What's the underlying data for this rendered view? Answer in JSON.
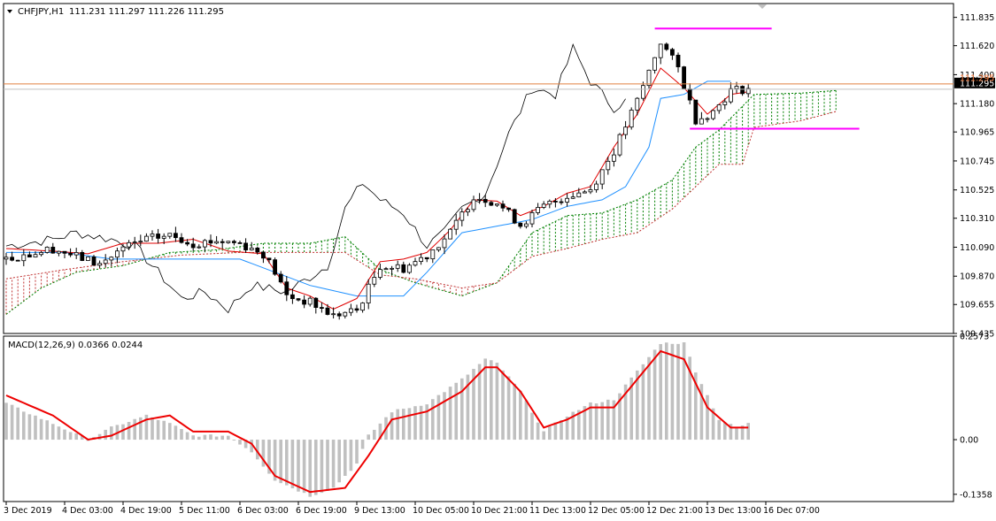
{
  "header": {
    "symbol_label": "CHFJPY,H1",
    "ohlc_label": "111.231 111.297 111.226 111.295",
    "macd_label": "MACD(12,26,9) 0.0366 0.0244"
  },
  "colors": {
    "background": "#ffffff",
    "candle": "#000000",
    "tenkan": "#e00000",
    "kijun": "#1e90ff",
    "chikou": "#000000",
    "cloud_bull": "#008000",
    "cloud_bear": "#c03030",
    "resistance_line": "#ff00ff",
    "bid_line": "#e08040",
    "macd_hist": "#c0c0c0",
    "macd_signal": "#ee0000",
    "price_badge_bg": "#000000"
  },
  "chart_data": [
    {
      "type": "candlestick",
      "title": "CHFJPY,H1",
      "ylim": [
        109.435,
        111.94
      ],
      "y_ticks": [
        "111.835",
        "111.620",
        "111.400",
        "111.180",
        "110.965",
        "110.745",
        "110.525",
        "110.310",
        "110.090",
        "109.870",
        "109.655",
        "109.435"
      ],
      "current_price": "111.295",
      "current_price_overlap": "111.295",
      "bid_line": 111.33,
      "horizontal_lines": [
        {
          "name": "upper level",
          "y": 111.75,
          "x_start": 111,
          "x_end": 131
        },
        {
          "name": "lower level",
          "y": 110.99,
          "x_start": 117,
          "x_end": 146
        }
      ],
      "close_anchors": [
        [
          0,
          110.0
        ],
        [
          8,
          110.08
        ],
        [
          12,
          110.02
        ],
        [
          16,
          109.96
        ],
        [
          20,
          110.08
        ],
        [
          24,
          110.15
        ],
        [
          28,
          110.18
        ],
        [
          32,
          110.12
        ],
        [
          36,
          110.14
        ],
        [
          40,
          110.12
        ],
        [
          44,
          110.04
        ],
        [
          46,
          109.9
        ],
        [
          48,
          109.72
        ],
        [
          52,
          109.67
        ],
        [
          56,
          109.57
        ],
        [
          60,
          109.61
        ],
        [
          64,
          109.95
        ],
        [
          68,
          109.93
        ],
        [
          72,
          110.03
        ],
        [
          76,
          110.2
        ],
        [
          80,
          110.48
        ],
        [
          84,
          110.43
        ],
        [
          88,
          110.26
        ],
        [
          92,
          110.4
        ],
        [
          96,
          110.48
        ],
        [
          100,
          110.53
        ],
        [
          104,
          110.82
        ],
        [
          108,
          111.2
        ],
        [
          112,
          111.65
        ],
        [
          115,
          111.45
        ],
        [
          118,
          111.06
        ],
        [
          121,
          111.12
        ],
        [
          124,
          111.28
        ],
        [
          127,
          111.295
        ]
      ],
      "ichimoku": {
        "chikou_anchors": [
          [
            0,
            110.1
          ],
          [
            8,
            110.15
          ],
          [
            12,
            110.2
          ],
          [
            18,
            110.15
          ],
          [
            22,
            110.1
          ],
          [
            25,
            109.95
          ],
          [
            30,
            109.7
          ],
          [
            34,
            109.75
          ],
          [
            38,
            109.62
          ],
          [
            42,
            109.8
          ],
          [
            48,
            109.75
          ],
          [
            55,
            109.95
          ],
          [
            58,
            110.38
          ],
          [
            61,
            110.58
          ],
          [
            64,
            110.45
          ],
          [
            68,
            110.35
          ],
          [
            72,
            110.1
          ],
          [
            75,
            110.2
          ],
          [
            78,
            110.38
          ],
          [
            82,
            110.5
          ],
          [
            86,
            110.95
          ],
          [
            90,
            111.3
          ],
          [
            94,
            111.25
          ],
          [
            97,
            111.6
          ],
          [
            100,
            111.35
          ],
          [
            104,
            111.15
          ],
          [
            106,
            111.2
          ]
        ],
        "tenkan_anchors": [
          [
            0,
            110.08
          ],
          [
            8,
            110.06
          ],
          [
            14,
            110.04
          ],
          [
            20,
            110.12
          ],
          [
            26,
            110.12
          ],
          [
            32,
            110.15
          ],
          [
            38,
            110.06
          ],
          [
            44,
            110.04
          ],
          [
            48,
            109.78
          ],
          [
            52,
            109.72
          ],
          [
            56,
            109.62
          ],
          [
            60,
            109.7
          ],
          [
            64,
            109.98
          ],
          [
            68,
            110.0
          ],
          [
            72,
            110.05
          ],
          [
            76,
            110.22
          ],
          [
            80,
            110.45
          ],
          [
            84,
            110.44
          ],
          [
            88,
            110.33
          ],
          [
            92,
            110.4
          ],
          [
            96,
            110.5
          ],
          [
            100,
            110.55
          ],
          [
            104,
            110.85
          ],
          [
            108,
            111.1
          ],
          [
            112,
            111.45
          ],
          [
            116,
            111.3
          ],
          [
            120,
            111.1
          ],
          [
            124,
            111.25
          ],
          [
            127,
            111.27
          ]
        ],
        "kijun_anchors": [
          [
            0,
            110.05
          ],
          [
            10,
            110.05
          ],
          [
            18,
            110.0
          ],
          [
            26,
            110.0
          ],
          [
            32,
            110.0
          ],
          [
            40,
            110.0
          ],
          [
            46,
            109.9
          ],
          [
            52,
            109.8
          ],
          [
            60,
            109.72
          ],
          [
            68,
            109.72
          ],
          [
            72,
            109.9
          ],
          [
            78,
            110.2
          ],
          [
            84,
            110.25
          ],
          [
            90,
            110.3
          ],
          [
            96,
            110.4
          ],
          [
            102,
            110.45
          ],
          [
            106,
            110.55
          ],
          [
            110,
            110.85
          ],
          [
            112,
            111.22
          ],
          [
            116,
            111.25
          ],
          [
            120,
            111.35
          ],
          [
            124,
            111.35
          ]
        ],
        "span_a_anchors": [
          [
            0,
            109.58
          ],
          [
            6,
            109.78
          ],
          [
            12,
            109.9
          ],
          [
            20,
            109.95
          ],
          [
            28,
            110.05
          ],
          [
            36,
            110.07
          ],
          [
            44,
            110.12
          ],
          [
            52,
            110.12
          ],
          [
            58,
            110.17
          ],
          [
            64,
            109.92
          ],
          [
            70,
            109.82
          ],
          [
            78,
            109.72
          ],
          [
            84,
            109.82
          ],
          [
            90,
            110.2
          ],
          [
            96,
            110.33
          ],
          [
            102,
            110.35
          ],
          [
            108,
            110.45
          ],
          [
            114,
            110.6
          ],
          [
            118,
            110.85
          ],
          [
            122,
            110.98
          ],
          [
            128,
            111.25
          ],
          [
            136,
            111.26
          ],
          [
            142,
            111.28
          ]
        ],
        "span_b_anchors": [
          [
            0,
            109.85
          ],
          [
            10,
            109.92
          ],
          [
            20,
            109.98
          ],
          [
            30,
            110.03
          ],
          [
            40,
            110.05
          ],
          [
            50,
            110.05
          ],
          [
            58,
            110.05
          ],
          [
            64,
            109.88
          ],
          [
            70,
            109.85
          ],
          [
            78,
            109.78
          ],
          [
            84,
            109.82
          ],
          [
            90,
            110.02
          ],
          [
            96,
            110.08
          ],
          [
            102,
            110.15
          ],
          [
            108,
            110.2
          ],
          [
            114,
            110.38
          ],
          [
            118,
            110.55
          ],
          [
            122,
            110.72
          ],
          [
            126,
            110.72
          ],
          [
            128,
            111.0
          ],
          [
            136,
            111.05
          ],
          [
            142,
            111.12
          ]
        ]
      }
    },
    {
      "type": "macd",
      "title": "MACD(12,26,9) 0.0366 0.0244",
      "parameters": [
        12,
        26,
        9
      ],
      "main_value": 0.0366,
      "signal_value": 0.0244,
      "ylim": [
        -0.1538,
        0.2573
      ],
      "y_ticks": [
        "0.2573",
        "0.00",
        "-0.1358"
      ],
      "histogram_anchors": [
        [
          0,
          0.09
        ],
        [
          8,
          0.04
        ],
        [
          14,
          0.0
        ],
        [
          18,
          0.03
        ],
        [
          24,
          0.06
        ],
        [
          28,
          0.04
        ],
        [
          32,
          0.01
        ],
        [
          38,
          0.01
        ],
        [
          42,
          -0.03
        ],
        [
          46,
          -0.1
        ],
        [
          52,
          -0.14
        ],
        [
          56,
          -0.12
        ],
        [
          60,
          -0.06
        ],
        [
          62,
          0.01
        ],
        [
          66,
          0.07
        ],
        [
          72,
          0.09
        ],
        [
          78,
          0.15
        ],
        [
          82,
          0.2
        ],
        [
          84,
          0.19
        ],
        [
          88,
          0.12
        ],
        [
          92,
          0.02
        ],
        [
          96,
          0.06
        ],
        [
          100,
          0.09
        ],
        [
          104,
          0.1
        ],
        [
          108,
          0.17
        ],
        [
          112,
          0.24
        ],
        [
          116,
          0.24
        ],
        [
          118,
          0.17
        ],
        [
          122,
          0.05
        ],
        [
          125,
          0.03
        ],
        [
          127,
          0.04
        ]
      ],
      "signal_anchors": [
        [
          0,
          0.11
        ],
        [
          8,
          0.06
        ],
        [
          14,
          0.0
        ],
        [
          18,
          0.01
        ],
        [
          24,
          0.05
        ],
        [
          28,
          0.06
        ],
        [
          32,
          0.02
        ],
        [
          38,
          0.02
        ],
        [
          42,
          -0.01
        ],
        [
          46,
          -0.09
        ],
        [
          52,
          -0.13
        ],
        [
          58,
          -0.12
        ],
        [
          62,
          -0.04
        ],
        [
          66,
          0.05
        ],
        [
          72,
          0.07
        ],
        [
          78,
          0.12
        ],
        [
          82,
          0.18
        ],
        [
          84,
          0.18
        ],
        [
          88,
          0.12
        ],
        [
          92,
          0.03
        ],
        [
          96,
          0.05
        ],
        [
          100,
          0.08
        ],
        [
          104,
          0.08
        ],
        [
          108,
          0.15
        ],
        [
          112,
          0.22
        ],
        [
          116,
          0.2
        ],
        [
          120,
          0.08
        ],
        [
          124,
          0.03
        ],
        [
          127,
          0.03
        ]
      ]
    }
  ],
  "x_labels": [
    {
      "label": "3 Dec 2019",
      "index": 0
    },
    {
      "label": "4 Dec 03:00",
      "index": 10
    },
    {
      "label": "4 Dec 19:00",
      "index": 20
    },
    {
      "label": "5 Dec 11:00",
      "index": 30
    },
    {
      "label": "6 Dec 03:00",
      "index": 40
    },
    {
      "label": "6 Dec 19:00",
      "index": 50
    },
    {
      "label": "9 Dec 13:00",
      "index": 60
    },
    {
      "label": "10 Dec 05:00",
      "index": 70
    },
    {
      "label": "10 Dec 21:00",
      "index": 80
    },
    {
      "label": "11 Dec 13:00",
      "index": 90
    },
    {
      "label": "12 Dec 05:00",
      "index": 100
    },
    {
      "label": "12 Dec 21:00",
      "index": 110
    },
    {
      "label": "13 Dec 13:00",
      "index": 120
    },
    {
      "label": "16 Dec 07:00",
      "index": 130
    }
  ]
}
